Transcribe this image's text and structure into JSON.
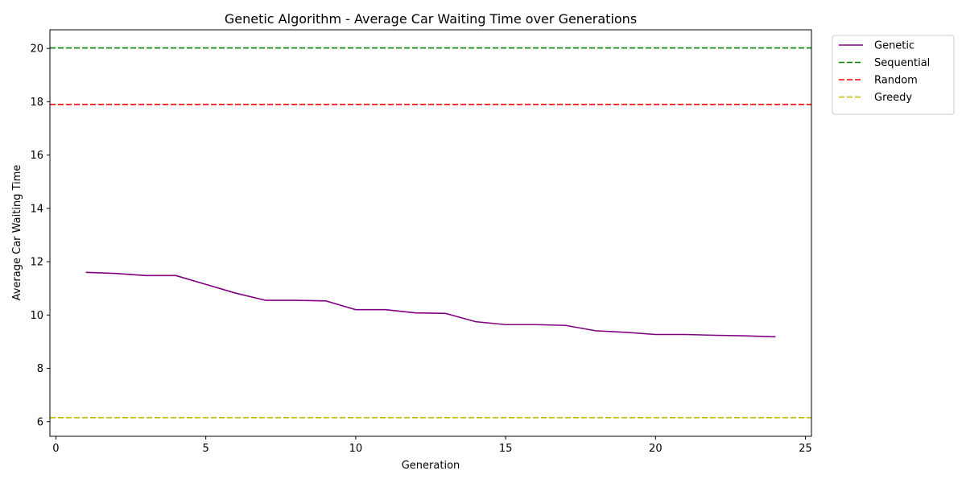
{
  "chart_data": {
    "type": "line",
    "title": "Genetic Algorithm - Average Car Waiting Time over Generations",
    "xlabel": "Generation",
    "ylabel": "Average Car Waiting Time",
    "xlim": [
      -0.2,
      25.2
    ],
    "ylim": [
      5.45,
      20.7
    ],
    "xticks": [
      0,
      5,
      10,
      15,
      20,
      25
    ],
    "yticks": [
      6,
      8,
      10,
      12,
      14,
      16,
      18,
      20
    ],
    "grid": false,
    "legend_position": "outside upper right",
    "series": [
      {
        "name": "Genetic",
        "style": "solid",
        "color": "#800080",
        "x": [
          1,
          2,
          3,
          4,
          5,
          6,
          7,
          8,
          9,
          10,
          11,
          12,
          13,
          14,
          15,
          16,
          17,
          18,
          19,
          20,
          21,
          22,
          23,
          24
        ],
        "y": [
          11.6,
          11.56,
          11.48,
          11.48,
          11.15,
          10.82,
          10.55,
          10.55,
          10.53,
          10.2,
          10.2,
          10.08,
          10.06,
          9.75,
          9.64,
          9.64,
          9.61,
          9.41,
          9.35,
          9.27,
          9.27,
          9.24,
          9.22,
          9.18
        ]
      },
      {
        "name": "Sequential",
        "style": "dashed",
        "color": "#008000",
        "hline": 20.02
      },
      {
        "name": "Random",
        "style": "dashed",
        "color": "#ff0000",
        "hline": 17.9
      },
      {
        "name": "Greedy",
        "style": "dashed",
        "color": "#bfbf00",
        "hline": 6.15
      }
    ]
  }
}
